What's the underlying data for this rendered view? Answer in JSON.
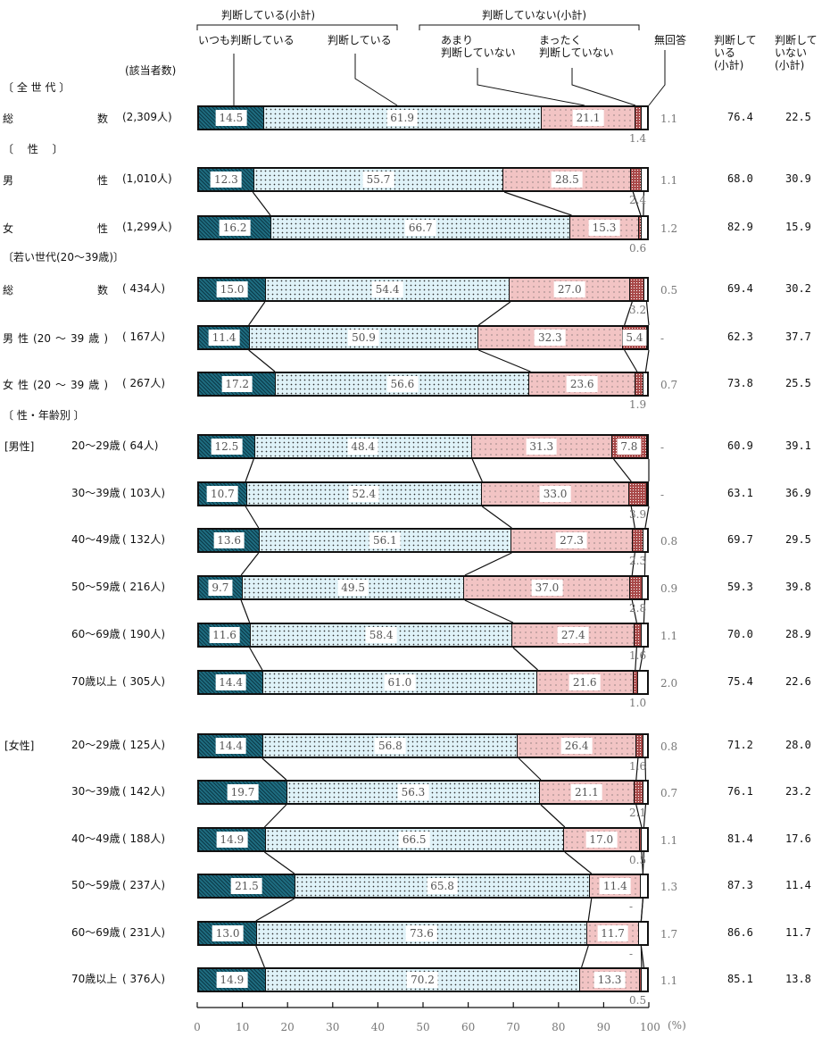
{
  "header": {
    "group_yes": "判断している(小計)",
    "group_no": "判断していない(小計)",
    "cat_always": "いつも判断している",
    "cat_judging": "判断している",
    "cat_not_much": "あまり\n判断していない",
    "cat_not_at_all": "まったく\n判断していない",
    "cat_no_answer": "無回答",
    "col_yes": "判断して\nいる\n(小計)",
    "col_no": "判断して\nいない\n(小計)",
    "respondents": "(該当者数)"
  },
  "sections": {
    "all": "〔 全 世 代 〕",
    "sex": "〔　 性　 〕",
    "young": "〔若い世代(20～39歳)〕",
    "sex_age": "〔 性・年齢別 〕",
    "male": "[男性]",
    "female": "[女性]"
  },
  "chart_data": {
    "type": "bar",
    "orientation": "horizontal-stacked-100",
    "series": [
      "いつも判断している",
      "判断している",
      "あまり判断していない",
      "まったく判断していない",
      "無回答"
    ],
    "subtotal_columns": [
      "判断している(小計)",
      "判断していない(小計)"
    ],
    "xlim": [
      0,
      100
    ],
    "x_ticks": [
      "0",
      "10",
      "20",
      "30",
      "40",
      "50",
      "60",
      "70",
      "80",
      "90",
      "100"
    ],
    "x_unit": "(%)",
    "rows": [
      {
        "label": "総数",
        "n": "(2,309人)",
        "values": [
          14.5,
          61.9,
          21.1,
          1.4,
          1.1
        ],
        "text": [
          "14.5",
          "61.9",
          "21.1",
          "1.4",
          "1.1"
        ],
        "yes": "76.4",
        "no": "22.5"
      },
      {
        "label": "男性",
        "n": "(1,010人)",
        "values": [
          12.3,
          55.7,
          28.5,
          2.4,
          1.1
        ],
        "text": [
          "12.3",
          "55.7",
          "28.5",
          "2.4",
          "1.1"
        ],
        "yes": "68.0",
        "no": "30.9"
      },
      {
        "label": "女性",
        "n": "(1,299人)",
        "values": [
          16.2,
          66.7,
          15.3,
          0.6,
          1.2
        ],
        "text": [
          "16.2",
          "66.7",
          "15.3",
          "0.6",
          "1.2"
        ],
        "yes": "82.9",
        "no": "15.9"
      },
      {
        "label": "総数",
        "n": "( 434人)",
        "values": [
          15.0,
          54.4,
          27.0,
          3.2,
          0.5
        ],
        "text": [
          "15.0",
          "54.4",
          "27.0",
          "3.2",
          "0.5"
        ],
        "yes": "69.4",
        "no": "30.2"
      },
      {
        "label": "男性(20～39歳)",
        "n": "( 167人)",
        "values": [
          11.4,
          50.9,
          32.3,
          5.4,
          0
        ],
        "text": [
          "11.4",
          "50.9",
          "32.3",
          "5.4",
          "-"
        ],
        "yes": "62.3",
        "no": "37.7"
      },
      {
        "label": "女性(20～39歳)",
        "n": "( 267人)",
        "values": [
          17.2,
          56.6,
          23.6,
          1.9,
          0.7
        ],
        "text": [
          "17.2",
          "56.6",
          "23.6",
          "1.9",
          "0.7"
        ],
        "yes": "73.8",
        "no": "25.5"
      },
      {
        "label": "20～29歳",
        "n": "(  64人)",
        "values": [
          12.5,
          48.4,
          31.3,
          7.8,
          0
        ],
        "text": [
          "12.5",
          "48.4",
          "31.3",
          "7.8",
          "-"
        ],
        "yes": "60.9",
        "no": "39.1"
      },
      {
        "label": "30～39歳",
        "n": "( 103人)",
        "values": [
          10.7,
          52.4,
          33.0,
          3.9,
          0
        ],
        "text": [
          "10.7",
          "52.4",
          "33.0",
          "3.9",
          "-"
        ],
        "yes": "63.1",
        "no": "36.9"
      },
      {
        "label": "40～49歳",
        "n": "( 132人)",
        "values": [
          13.6,
          56.1,
          27.3,
          2.3,
          0.8
        ],
        "text": [
          "13.6",
          "56.1",
          "27.3",
          "2.3",
          "0.8"
        ],
        "yes": "69.7",
        "no": "29.5"
      },
      {
        "label": "50～59歳",
        "n": "( 216人)",
        "values": [
          9.7,
          49.5,
          37.0,
          2.8,
          0.9
        ],
        "text": [
          "9.7",
          "49.5",
          "37.0",
          "2.8",
          "0.9"
        ],
        "yes": "59.3",
        "no": "39.8"
      },
      {
        "label": "60～69歳",
        "n": "( 190人)",
        "values": [
          11.6,
          58.4,
          27.4,
          1.6,
          1.1
        ],
        "text": [
          "11.6",
          "58.4",
          "27.4",
          "1.6",
          "1.1"
        ],
        "yes": "70.0",
        "no": "28.9"
      },
      {
        "label": "70歳以上",
        "n": "( 305人)",
        "values": [
          14.4,
          61.0,
          21.6,
          1.0,
          2.0
        ],
        "text": [
          "14.4",
          "61.0",
          "21.6",
          "1.0",
          "2.0"
        ],
        "yes": "75.4",
        "no": "22.6"
      },
      {
        "label": "20～29歳",
        "n": "( 125人)",
        "values": [
          14.4,
          56.8,
          26.4,
          1.6,
          0.8
        ],
        "text": [
          "14.4",
          "56.8",
          "26.4",
          "1.6",
          "0.8"
        ],
        "yes": "71.2",
        "no": "28.0"
      },
      {
        "label": "30～39歳",
        "n": "( 142人)",
        "values": [
          19.7,
          56.3,
          21.1,
          2.1,
          0.7
        ],
        "text": [
          "19.7",
          "56.3",
          "21.1",
          "2.1",
          "0.7"
        ],
        "yes": "76.1",
        "no": "23.2"
      },
      {
        "label": "40～49歳",
        "n": "( 188人)",
        "values": [
          14.9,
          66.5,
          17.0,
          0.5,
          1.1
        ],
        "text": [
          "14.9",
          "66.5",
          "17.0",
          "0.5",
          "1.1"
        ],
        "yes": "81.4",
        "no": "17.6"
      },
      {
        "label": "50～59歳",
        "n": "( 237人)",
        "values": [
          21.5,
          65.8,
          11.4,
          0,
          1.3
        ],
        "text": [
          "21.5",
          "65.8",
          "11.4",
          "-",
          "1.3"
        ],
        "yes": "87.3",
        "no": "11.4"
      },
      {
        "label": "60～69歳",
        "n": "( 231人)",
        "values": [
          13.0,
          73.6,
          11.7,
          0,
          1.7
        ],
        "text": [
          "13.0",
          "73.6",
          "11.7",
          "-",
          "1.7"
        ],
        "yes": "86.6",
        "no": "11.7"
      },
      {
        "label": "70歳以上",
        "n": "( 376人)",
        "values": [
          14.9,
          70.2,
          13.3,
          0.5,
          1.1
        ],
        "text": [
          "14.9",
          "70.2",
          "13.3",
          "0.5",
          "1.1"
        ],
        "yes": "85.1",
        "no": "13.8"
      }
    ],
    "colors": [
      "#1e6c80",
      "#dff2f8",
      "#f2c4c4",
      "#a84848",
      "#ffffff"
    ]
  }
}
